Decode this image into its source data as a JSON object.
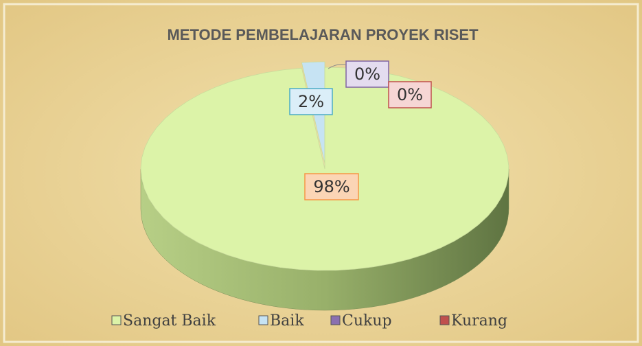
{
  "chart_data": {
    "type": "pie",
    "title": "METODE PEMBELAJARAN PROYEK RISET",
    "categories": [
      "Sangat Baik",
      "Baik",
      "Cukup",
      "Kurang"
    ],
    "values": [
      98,
      2,
      0,
      0
    ],
    "value_labels": [
      "98%",
      "2%",
      "0%",
      "0%"
    ],
    "colors": [
      "#dcf3a8",
      "#c6e3f3",
      "#8a70b0",
      "#c0504d"
    ],
    "legend": "bottom"
  }
}
